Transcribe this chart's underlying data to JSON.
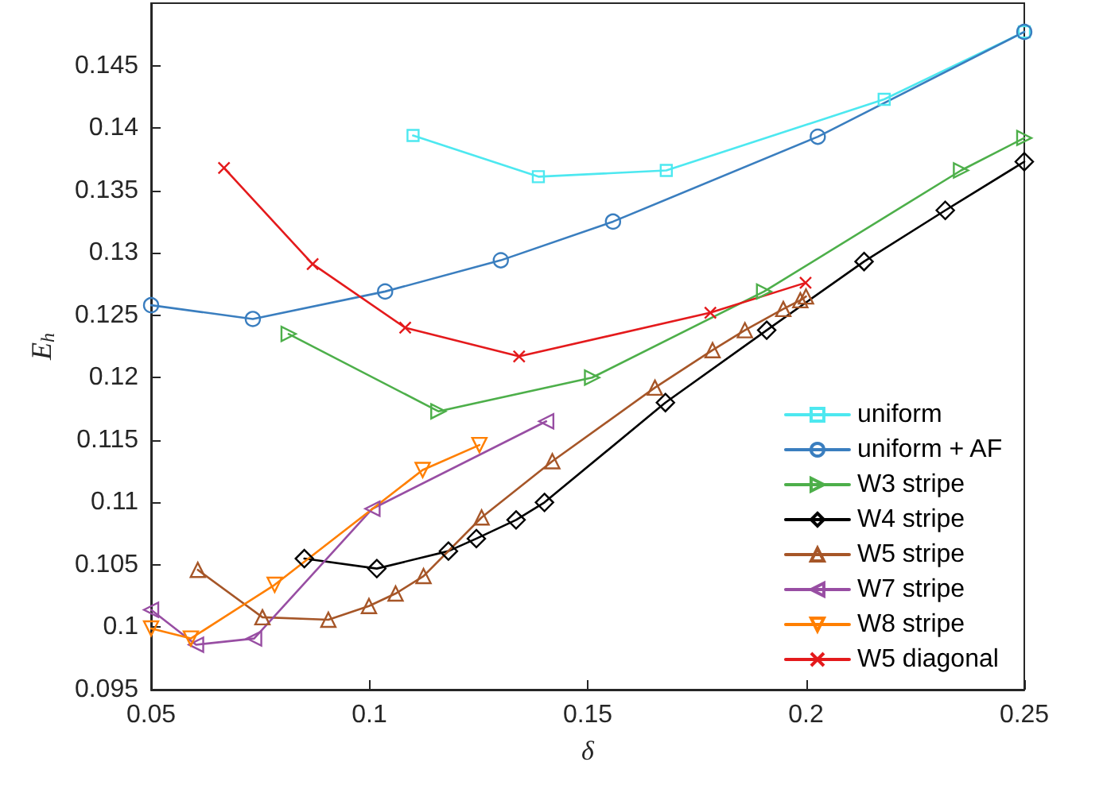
{
  "chart_data": {
    "type": "line",
    "xlabel": "δ",
    "ylabel": "E$_{h}$",
    "xlim": [
      0.05,
      0.25
    ],
    "ylim": [
      0.095,
      0.15
    ],
    "xticks": [
      0.05,
      0.1,
      0.15,
      0.2,
      0.25
    ],
    "yticks": [
      0.095,
      0.1,
      0.105,
      0.11,
      0.115,
      0.12,
      0.125,
      0.13,
      0.135,
      0.14,
      0.145
    ],
    "grid": false,
    "legend": "bottom right",
    "line_style": "solid",
    "series": [
      {
        "name": "uniform",
        "color": "#4de8f0",
        "marker": "square",
        "x": [
          0.11,
          0.1387,
          0.168,
          0.2179,
          0.25
        ],
        "values": [
          0.1394,
          0.1361,
          0.1366,
          0.1423,
          0.1477
        ]
      },
      {
        "name": "uniform + AF",
        "color": "#3a7ebf",
        "marker": "circle",
        "x": [
          0.05,
          0.0733,
          0.1036,
          0.1301,
          0.1558,
          0.2027,
          0.25
        ],
        "values": [
          0.1258,
          0.1247,
          0.1269,
          0.1294,
          0.1325,
          0.1393,
          0.1477
        ]
      },
      {
        "name": "W3 stripe",
        "color": "#4daf4a",
        "marker": "triangle-right",
        "x": [
          0.0815,
          0.1158,
          0.151,
          0.1904,
          0.2355,
          0.25
        ],
        "values": [
          0.1235,
          0.1173,
          0.12,
          0.1269,
          0.1366,
          0.1392
        ]
      },
      {
        "name": "W4 stripe",
        "color": "#000000",
        "marker": "diamond",
        "x": [
          0.0851,
          0.1017,
          0.1181,
          0.1245,
          0.1336,
          0.1401,
          0.1678,
          0.191,
          0.2133,
          0.2319,
          0.25
        ],
        "values": [
          0.1055,
          0.1047,
          0.1061,
          0.1071,
          0.1086,
          0.11,
          0.118,
          0.1238,
          0.1293,
          0.1334,
          0.1373
        ]
      },
      {
        "name": "W5 stripe",
        "color": "#a65628",
        "marker": "triangle",
        "x": [
          0.0607,
          0.0755,
          0.0906,
          0.0999,
          0.106,
          0.1124,
          0.1257,
          0.1419,
          0.1654,
          0.1786,
          0.186,
          0.1948,
          0.1987,
          0.2
        ],
        "values": [
          0.1046,
          0.1008,
          0.1006,
          0.1017,
          0.1027,
          0.1041,
          0.1088,
          0.1133,
          0.1192,
          0.1222,
          0.1238,
          0.1255,
          0.1262,
          0.1265
        ]
      },
      {
        "name": "W7 stripe",
        "color": "#984ea3",
        "marker": "triangle-left",
        "x": [
          0.05,
          0.0603,
          0.0736,
          0.1007,
          0.1405
        ],
        "values": [
          0.1014,
          0.0986,
          0.0991,
          0.1095,
          0.1165
        ]
      },
      {
        "name": "W8 stripe",
        "color": "#ff7f00",
        "marker": "triangle-down",
        "x": [
          0.05,
          0.0591,
          0.0783,
          0.1122,
          0.1252
        ],
        "values": [
          0.0999,
          0.0991,
          0.1034,
          0.1126,
          0.1146
        ]
      },
      {
        "name": "W5 diagonal",
        "color": "#e41a1c",
        "marker": "cross",
        "x": [
          0.0667,
          0.087,
          0.1082,
          0.1343,
          0.1781,
          0.1999
        ],
        "values": [
          0.1368,
          0.1291,
          0.124,
          0.1217,
          0.1252,
          0.1276
        ]
      }
    ]
  }
}
